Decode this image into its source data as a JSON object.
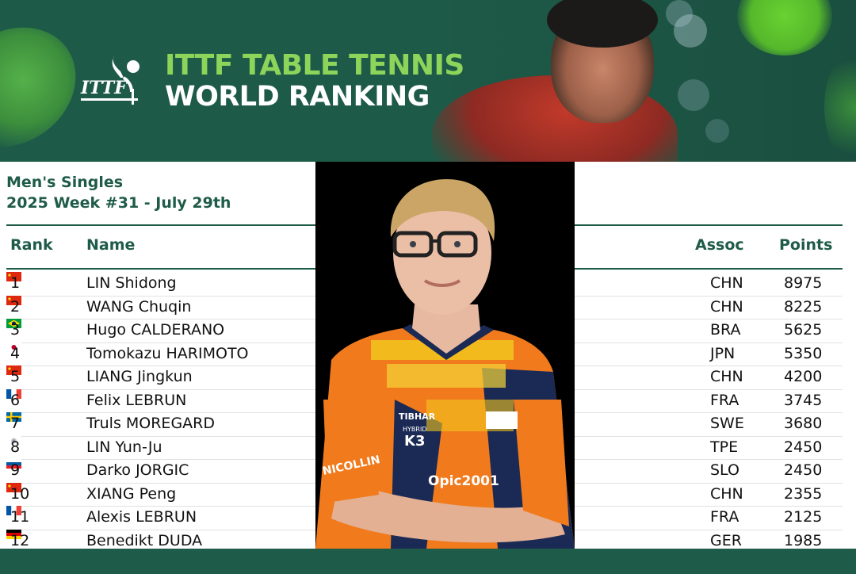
{
  "banner": {
    "title_line1": "ITTF TABLE TENNIS",
    "title_line2": "WORLD RANKING",
    "logo_text": "ITTF",
    "colors": {
      "background": "#1e5a48",
      "accent": "#8cd45a"
    }
  },
  "heading": {
    "category": "Men's Singles",
    "week": "2025 Week #31 - July 29th"
  },
  "table": {
    "headers": {
      "rank": "Rank",
      "name": "Name",
      "assoc": "Assoc",
      "points": "Points"
    },
    "rows": [
      {
        "rank": "1",
        "name": "LIN Shidong",
        "assoc": "CHN",
        "points": "8975",
        "flag": "flag-china-icon"
      },
      {
        "rank": "2",
        "name": "WANG Chuqin",
        "assoc": "CHN",
        "points": "8225",
        "flag": "flag-china-icon"
      },
      {
        "rank": "3",
        "name": "Hugo CALDERANO",
        "assoc": "BRA",
        "points": "5625",
        "flag": "flag-brazil-icon"
      },
      {
        "rank": "4",
        "name": "Tomokazu HARIMOTO",
        "assoc": "JPN",
        "points": "5350",
        "flag": "flag-japan-icon"
      },
      {
        "rank": "5",
        "name": "LIANG Jingkun",
        "assoc": "CHN",
        "points": "4200",
        "flag": "flag-china-icon"
      },
      {
        "rank": "6",
        "name": "Felix LEBRUN",
        "assoc": "FRA",
        "points": "3745",
        "flag": "flag-france-icon"
      },
      {
        "rank": "7",
        "name": "Truls MOREGARD",
        "assoc": "SWE",
        "points": "3680",
        "flag": "flag-sweden-icon"
      },
      {
        "rank": "8",
        "name": "LIN Yun-Ju",
        "assoc": "TPE",
        "points": "2450",
        "flag": "flag-chinese-taipei-icon"
      },
      {
        "rank": "9",
        "name": "Darko JORGIC",
        "assoc": "SLO",
        "points": "2450",
        "flag": "flag-slovenia-icon"
      },
      {
        "rank": "10",
        "name": "XIANG Peng",
        "assoc": "CHN",
        "points": "2355",
        "flag": "flag-china-icon"
      },
      {
        "rank": "11",
        "name": "Alexis LEBRUN",
        "assoc": "FRA",
        "points": "2125",
        "flag": "flag-france-icon"
      },
      {
        "rank": "12",
        "name": "Benedikt DUDA",
        "assoc": "GER",
        "points": "1985",
        "flag": "flag-germany-icon"
      }
    ]
  },
  "photo": {
    "jersey_text": [
      "TIBHAR",
      "HYBRID",
      "K3",
      "NICOLLIN",
      "Opic2001"
    ]
  }
}
